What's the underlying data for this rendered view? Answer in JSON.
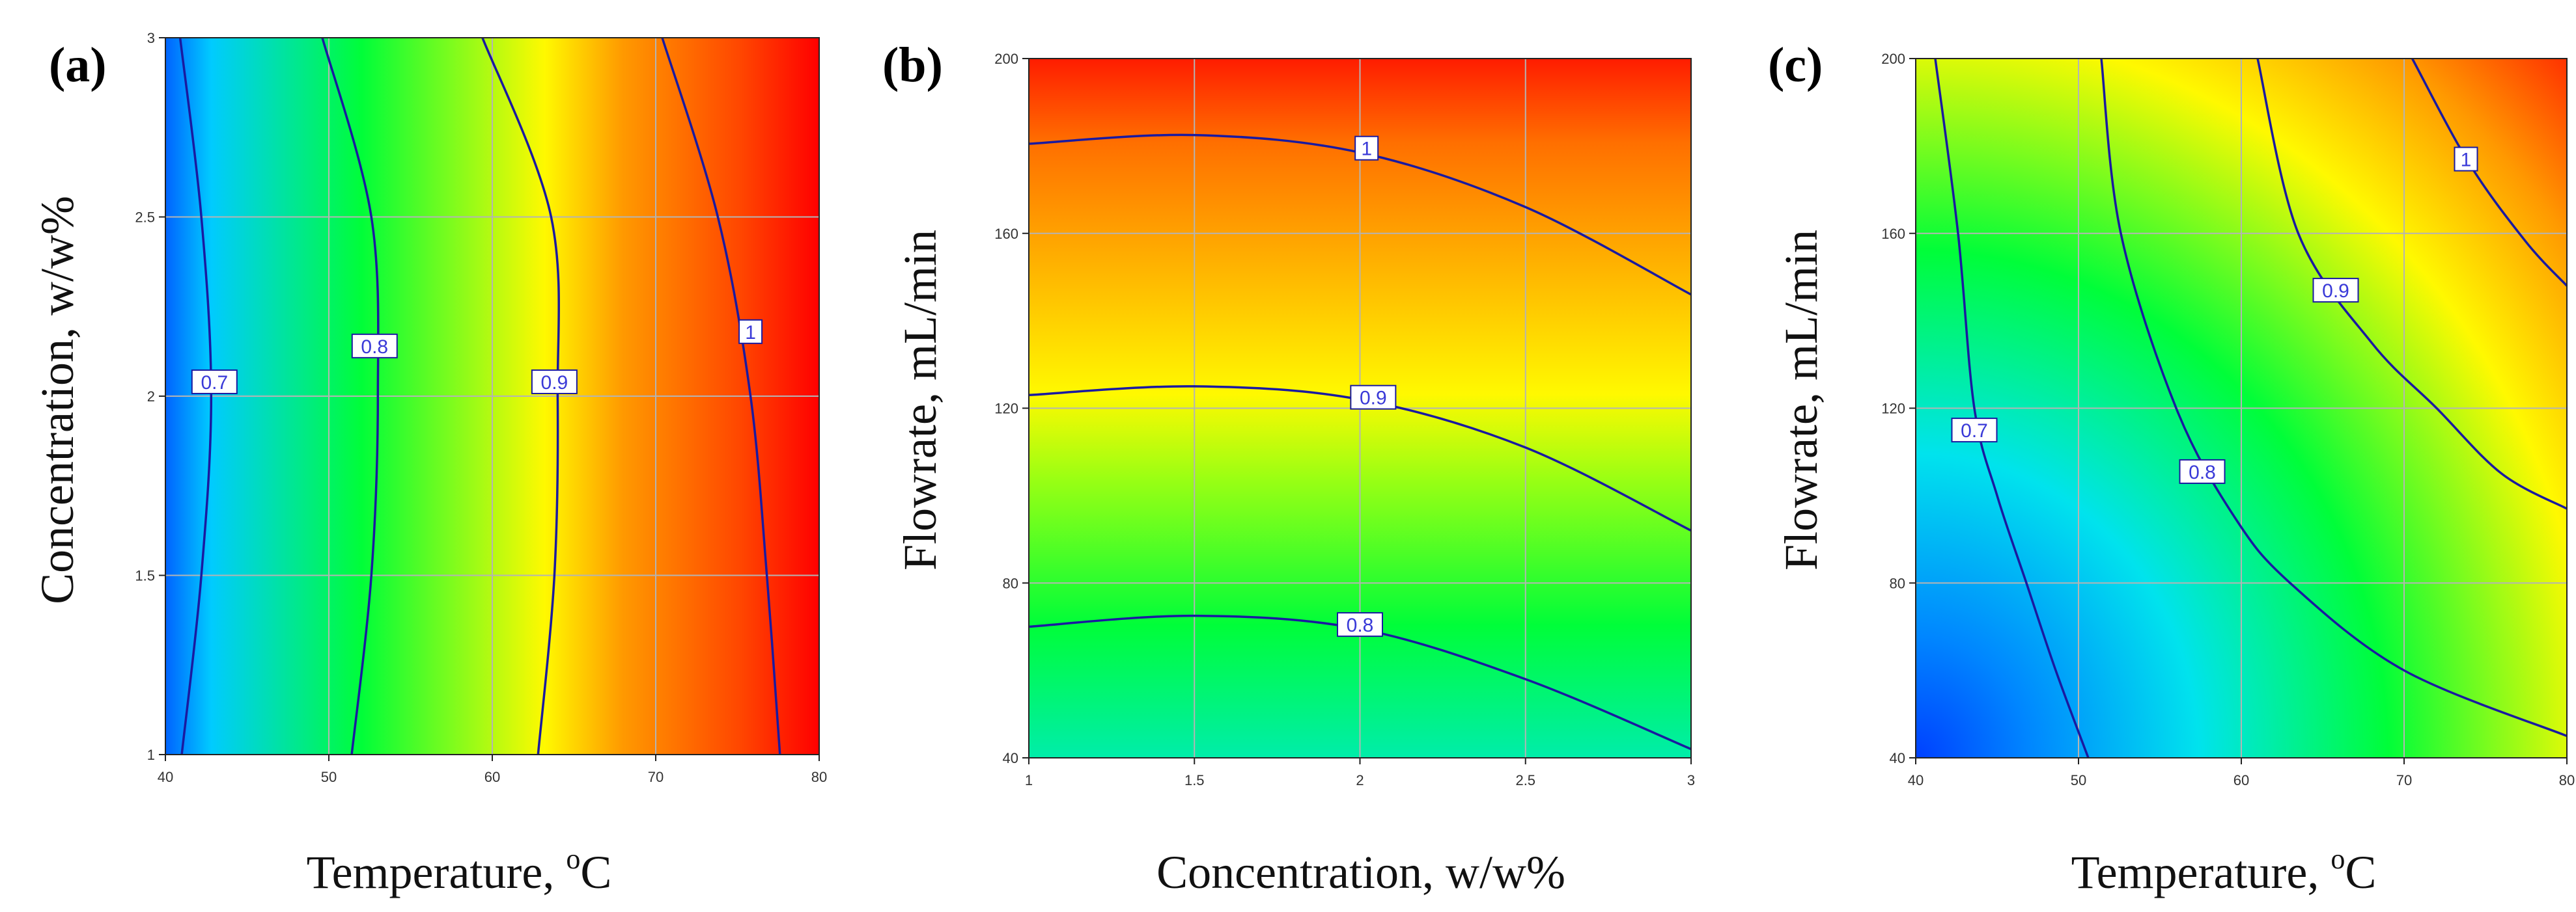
{
  "colors": {
    "contour_line": "#1a1aa0",
    "contour_label_text": "#3a3ad8",
    "grid": "#b4b4b4",
    "colormap": [
      "#0040ff",
      "#00e0ff",
      "#00ff30",
      "#ffff00",
      "#ff8000",
      "#ff0000"
    ],
    "colormap_range": [
      0.62,
      1.08
    ]
  },
  "chart_data": [
    {
      "type": "contour",
      "panel_label": "(a)",
      "xlabel": "Temperature, ",
      "xlabel_sup": "o",
      "xlabel_unit": "C",
      "ylabel": "Concentration,  w/w%",
      "xlim": [
        40,
        80
      ],
      "ylim": [
        1,
        3
      ],
      "x_ticks": [
        "40",
        "50",
        "60",
        "70",
        "80"
      ],
      "y_ticks": [
        "1",
        "1.5",
        "2",
        "2.5",
        "3"
      ],
      "contour_levels": [
        "0.7",
        "0.8",
        "0.9",
        "1"
      ],
      "contours": [
        {
          "label": "0.7",
          "at": [
            43,
            2.04
          ],
          "points": [
            [
              41.0,
              1.0
            ],
            [
              42.2,
              1.5
            ],
            [
              42.8,
              2.0
            ],
            [
              42.2,
              2.5
            ],
            [
              40.9,
              3.0
            ]
          ]
        },
        {
          "label": "0.8",
          "at": [
            52.8,
            2.14
          ],
          "points": [
            [
              51.4,
              1.0
            ],
            [
              52.6,
              1.5
            ],
            [
              53.0,
              2.0
            ],
            [
              52.6,
              2.5
            ],
            [
              49.6,
              3.0
            ]
          ]
        },
        {
          "label": "0.9",
          "at": [
            63.8,
            2.04
          ],
          "points": [
            [
              62.8,
              1.0
            ],
            [
              63.8,
              1.5
            ],
            [
              64.0,
              2.0
            ],
            [
              63.6,
              2.5
            ],
            [
              59.4,
              3.0
            ]
          ]
        },
        {
          "label": "1",
          "at": [
            75.8,
            2.18
          ],
          "points": [
            [
              77.6,
              1.0
            ],
            [
              76.8,
              1.5
            ],
            [
              75.8,
              2.0
            ],
            [
              73.8,
              2.5
            ],
            [
              70.4,
              3.0
            ]
          ]
        }
      ]
    },
    {
      "type": "contour",
      "panel_label": "(b)",
      "xlabel": "Concentration, w/w%",
      "xlabel_sup": "",
      "xlabel_unit": "",
      "ylabel": "Flowrate,  mL/min",
      "xlim": [
        1,
        3
      ],
      "ylim": [
        40,
        200
      ],
      "x_ticks": [
        "1",
        "1.5",
        "2",
        "2.5",
        "3"
      ],
      "y_ticks": [
        "40",
        "80",
        "120",
        "160",
        "200"
      ],
      "contour_levels": [
        "0.8",
        "0.9",
        "1"
      ],
      "contours": [
        {
          "label": "0.8",
          "at": [
            2.0,
            70.5
          ],
          "points": [
            [
              1.0,
              70
            ],
            [
              1.5,
              72.5
            ],
            [
              2.0,
              69.5
            ],
            [
              2.5,
              58
            ],
            [
              3.0,
              42
            ]
          ]
        },
        {
          "label": "0.9",
          "at": [
            2.04,
            122.5
          ],
          "points": [
            [
              1.0,
              123
            ],
            [
              1.5,
              125
            ],
            [
              2.0,
              122
            ],
            [
              2.5,
              111
            ],
            [
              3.0,
              92
            ]
          ]
        },
        {
          "label": "1",
          "at": [
            2.02,
            179.5
          ],
          "points": [
            [
              1.0,
              180.5
            ],
            [
              1.5,
              182.5
            ],
            [
              2.0,
              178.5
            ],
            [
              2.5,
              166
            ],
            [
              3.0,
              146
            ]
          ]
        }
      ]
    },
    {
      "type": "contour",
      "panel_label": "(c)",
      "xlabel": "Temperature, ",
      "xlabel_sup": "o",
      "xlabel_unit": "C",
      "ylabel": "Flowrate,  mL/min",
      "xlim": [
        40,
        80
      ],
      "ylim": [
        40,
        200
      ],
      "x_ticks": [
        "40",
        "50",
        "60",
        "70",
        "80"
      ],
      "y_ticks": [
        "40",
        "80",
        "120",
        "160",
        "200"
      ],
      "contour_levels": [
        "0.7",
        "0.8",
        "0.9",
        "1"
      ],
      "contours": [
        {
          "label": "0.7",
          "at": [
            43.6,
            115
          ],
          "points": [
            [
              41.2,
              200
            ],
            [
              42.6,
              160
            ],
            [
              43.6,
              120
            ],
            [
              45.0,
              100
            ],
            [
              46.8,
              80
            ],
            [
              48.6,
              60
            ],
            [
              50.6,
              40
            ]
          ]
        },
        {
          "label": "0.8",
          "at": [
            57.6,
            105.5
          ],
          "points": [
            [
              51.4,
              200
            ],
            [
              52.6,
              160
            ],
            [
              56.0,
              120
            ],
            [
              59.6,
              95
            ],
            [
              63.0,
              80
            ],
            [
              70.0,
              60
            ],
            [
              80.0,
              45
            ]
          ]
        },
        {
          "label": "0.9",
          "at": [
            65.8,
            147
          ],
          "points": [
            [
              61.0,
              200
            ],
            [
              63.5,
              160
            ],
            [
              68.0,
              135
            ],
            [
              72.0,
              120
            ],
            [
              76.0,
              105
            ],
            [
              80.0,
              97
            ]
          ]
        },
        {
          "label": "1",
          "at": [
            73.8,
            177
          ],
          "points": [
            [
              70.5,
              200
            ],
            [
              74.0,
              176
            ],
            [
              77.5,
              158
            ],
            [
              80.0,
              148
            ]
          ]
        }
      ]
    }
  ]
}
